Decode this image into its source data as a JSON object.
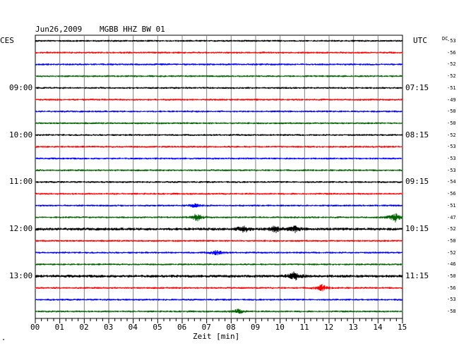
{
  "header": {
    "date": "Jun26,2009",
    "station": "MGBB HHZ BW 01",
    "left_zone": "CES",
    "right_zone": "UTC",
    "dc_label": "DC"
  },
  "footer": {
    "xlabel": "Zeit [min]",
    "corner_mark": "\""
  },
  "chart_data": {
    "type": "line",
    "subtype": "helicorder",
    "xlabel": "Zeit [min]",
    "xlim": [
      0,
      15
    ],
    "x_ticks": [
      "00",
      "01",
      "02",
      "03",
      "04",
      "05",
      "06",
      "07",
      "08",
      "09",
      "10",
      "11",
      "12",
      "13",
      "14",
      "15"
    ],
    "minor_ticks_per_minute": 4,
    "trace_colors": [
      "#000000",
      "#ff0000",
      "#0000ff",
      "#006400"
    ],
    "rows_per_hour": 4,
    "left_hour_labels": [
      {
        "row": 4,
        "label": "09:00"
      },
      {
        "row": 8,
        "label": "10:00"
      },
      {
        "row": 12,
        "label": "11:00"
      },
      {
        "row": 16,
        "label": "12:00"
      },
      {
        "row": 20,
        "label": "13:00"
      }
    ],
    "right_time_labels": [
      {
        "row": 4,
        "label": "07:15"
      },
      {
        "row": 8,
        "label": "08:15"
      },
      {
        "row": 12,
        "label": "09:15"
      },
      {
        "row": 16,
        "label": "10:15"
      },
      {
        "row": 20,
        "label": "11:15"
      }
    ],
    "dc_offsets": [
      "-53",
      "-56",
      "-52",
      "-52",
      "-51",
      "-49",
      "-50",
      "-50",
      "-52",
      "-53",
      "-53",
      "-53",
      "-54",
      "-56",
      "-51",
      "-47",
      "-52",
      "-50",
      "-52",
      "-46",
      "-50",
      "-56",
      "-53",
      "-58"
    ],
    "events": [
      {
        "row": 14,
        "minute": 6.5,
        "amplitude": 2.0
      },
      {
        "row": 15,
        "minute": 6.6,
        "amplitude": 4.5
      },
      {
        "row": 15,
        "minute": 14.7,
        "amplitude": 5.0
      },
      {
        "row": 16,
        "minute": 8.5,
        "amplitude": 4.0
      },
      {
        "row": 16,
        "minute": 9.8,
        "amplitude": 4.0
      },
      {
        "row": 16,
        "minute": 10.6,
        "amplitude": 3.0
      },
      {
        "row": 18,
        "minute": 7.4,
        "amplitude": 3.0
      },
      {
        "row": 20,
        "minute": 10.6,
        "amplitude": 5.0
      },
      {
        "row": 21,
        "minute": 11.7,
        "amplitude": 3.5
      },
      {
        "row": 23,
        "minute": 8.3,
        "amplitude": 2.5
      }
    ]
  }
}
